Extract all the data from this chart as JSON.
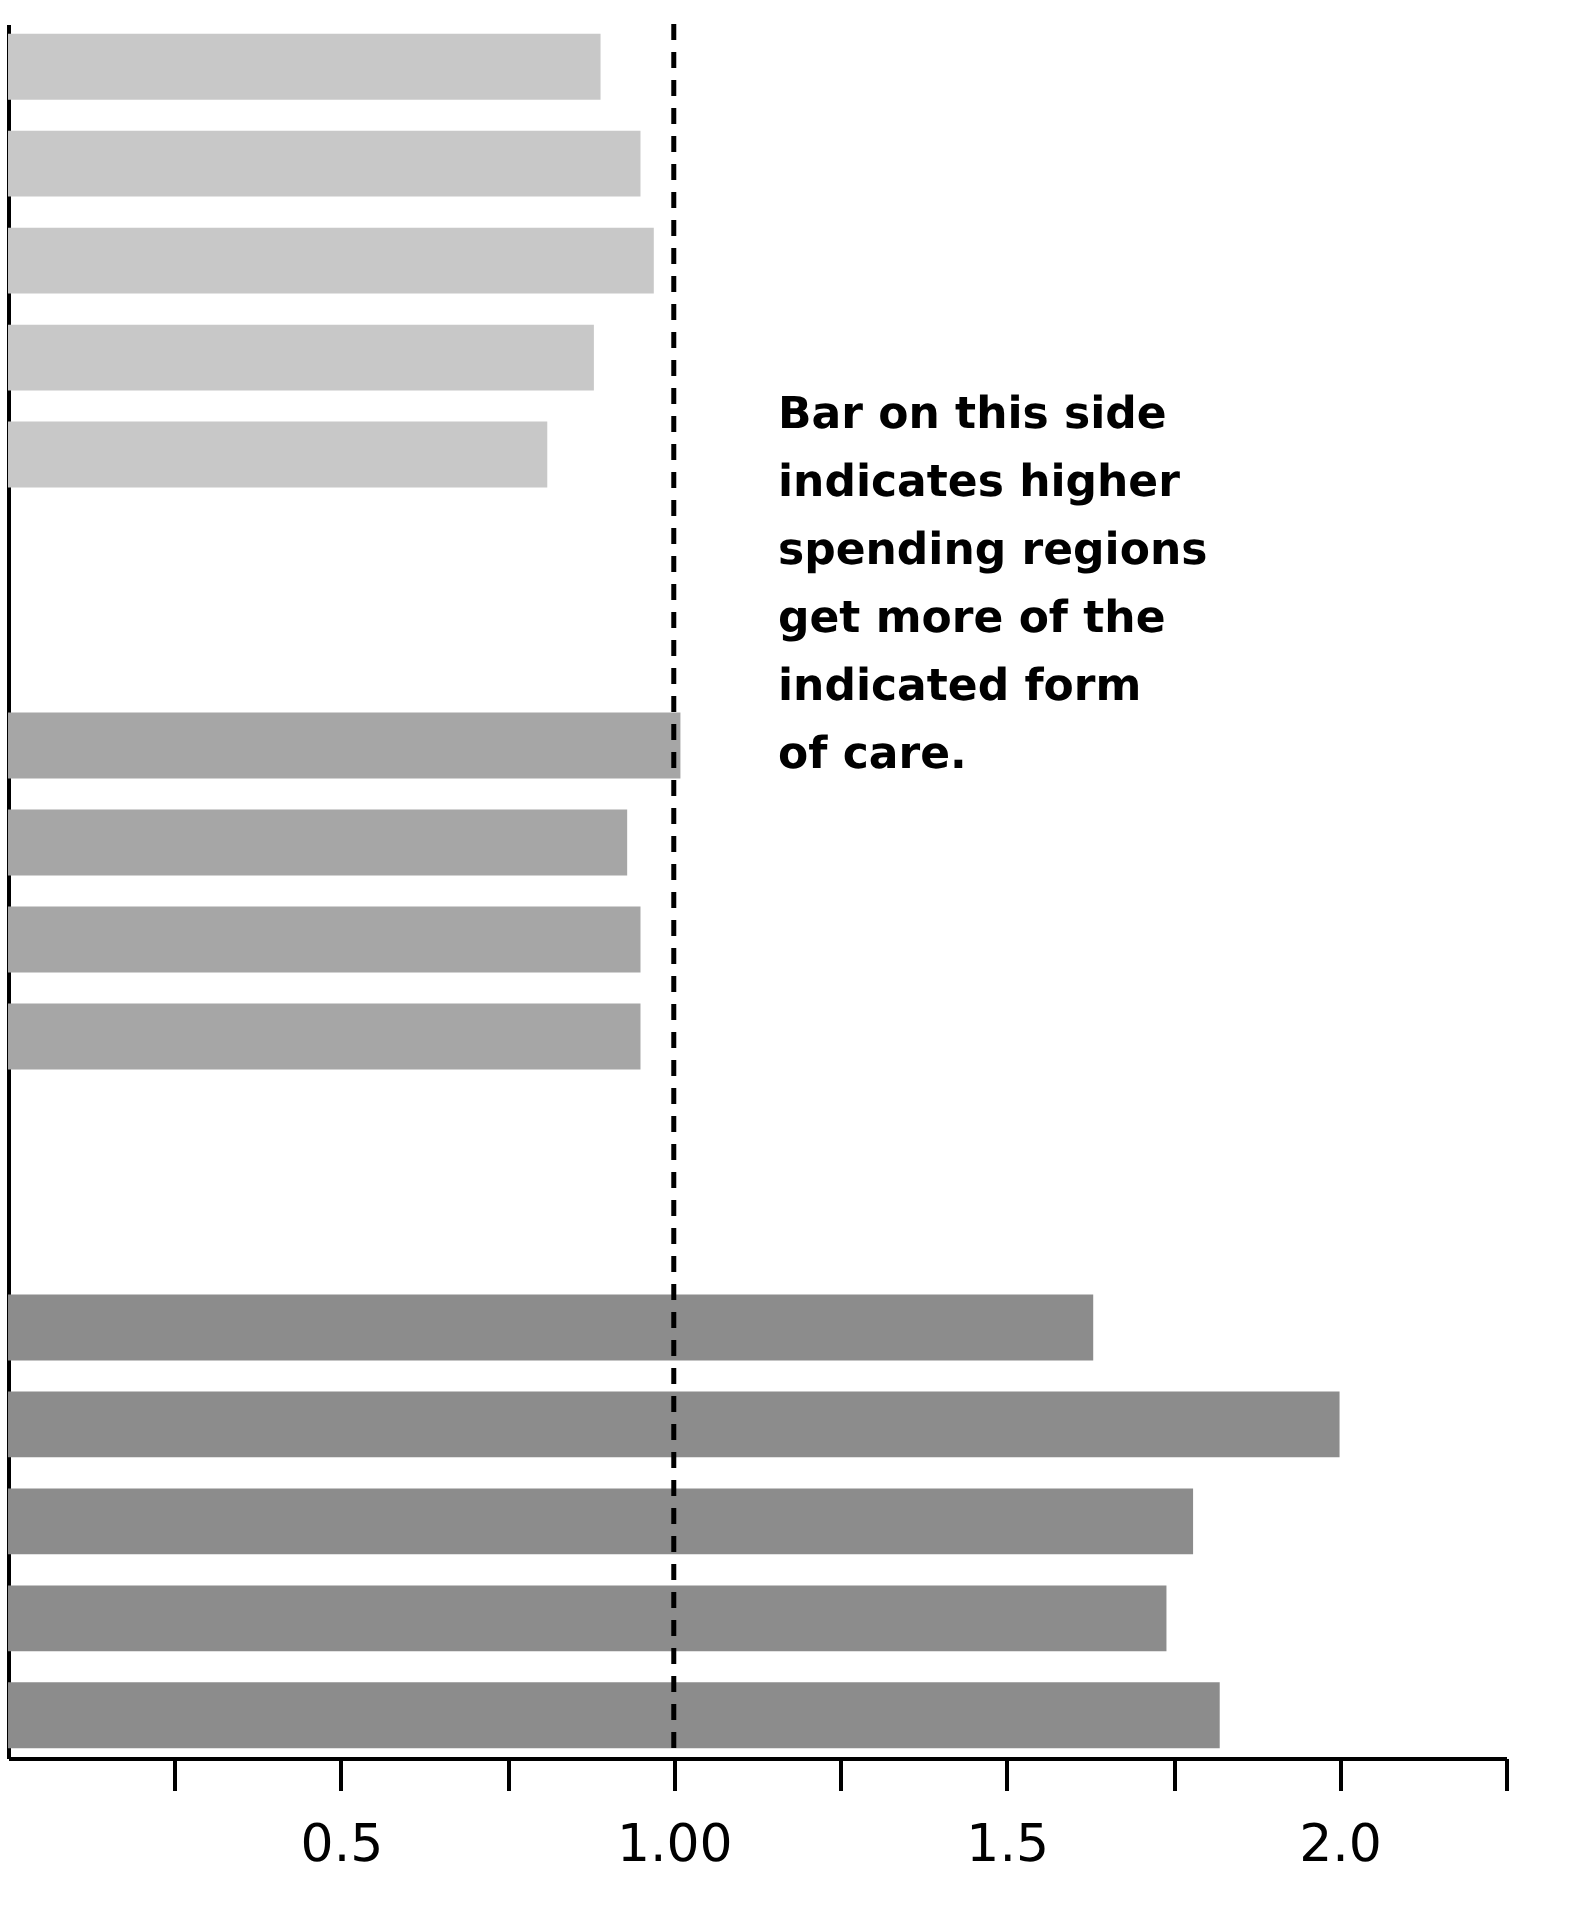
{
  "chart_data": {
    "type": "bar",
    "orientation": "horizontal",
    "categories": [
      null,
      null,
      null,
      null,
      null,
      null,
      null,
      null,
      null,
      null,
      null,
      null,
      null,
      null,
      null,
      null,
      null,
      null
    ],
    "values": [
      0.89,
      0.95,
      0.97,
      0.88,
      0.81,
      null,
      null,
      1.01,
      0.93,
      0.95,
      0.95,
      null,
      null,
      1.63,
      2.0,
      1.78,
      1.74,
      1.82
    ],
    "colors": [
      "#c8c8c8",
      "#c8c8c8",
      "#c8c8c8",
      "#c8c8c8",
      "#c8c8c8",
      null,
      null,
      "#a6a6a6",
      "#a6a6a6",
      "#a6a6a6",
      "#a6a6a6",
      null,
      null,
      "#8c8c8c",
      "#8c8c8c",
      "#8c8c8c",
      "#8c8c8c",
      "#8c8c8c"
    ],
    "xlim": [
      0,
      2.25
    ],
    "xticks": [
      {
        "value": 0.25,
        "label": null
      },
      0.5,
      {
        "value": 0.75,
        "label": null
      },
      {
        "value": 1.0,
        "label": "1.00"
      },
      {
        "value": 1.25,
        "label": null
      },
      {
        "value": 1.5,
        "label": "1.5"
      },
      {
        "value": 1.75,
        "label": null
      },
      {
        "value": 2.0,
        "label": "2.0"
      },
      {
        "value": 2.25,
        "label": null
      }
    ],
    "ref_lines": [
      {
        "axis": "x",
        "value": 1.0,
        "color": "#000000",
        "line_style": "dashed"
      }
    ],
    "annotations": [
      "Bar on this side indicates higher spending regions get more of the indicated form of care."
    ],
    "tick_labels": "x",
    "grid": false
  }
}
